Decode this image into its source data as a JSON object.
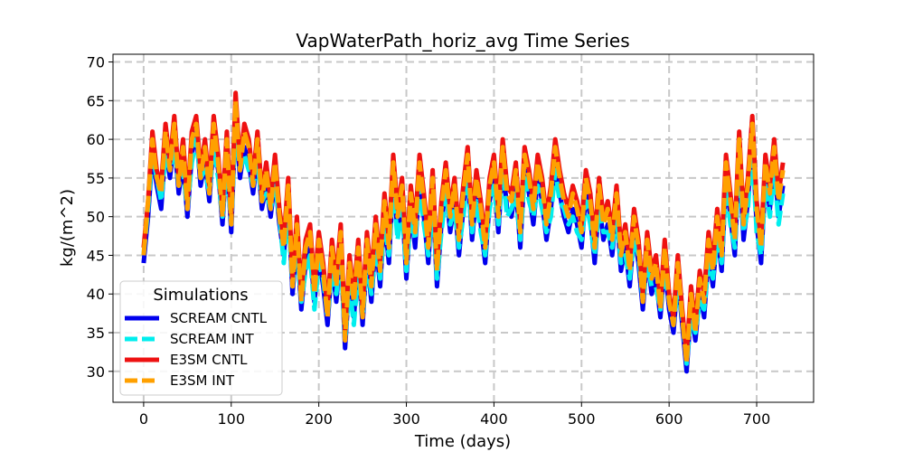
{
  "chart_data": {
    "type": "line",
    "title": "VapWaterPath_horiz_avg Time Series",
    "xlabel": "Time (days)",
    "ylabel": "kg/(m^2)",
    "xlim": [
      -35,
      765
    ],
    "ylim": [
      26,
      71
    ],
    "xticks": [
      0,
      100,
      200,
      300,
      400,
      500,
      600,
      700
    ],
    "yticks": [
      30,
      35,
      40,
      45,
      50,
      55,
      60,
      65,
      70
    ],
    "grid": true,
    "legend": {
      "title": "Simulations",
      "placement": "lower-left"
    },
    "x": [
      0,
      5,
      10,
      15,
      20,
      25,
      30,
      35,
      40,
      45,
      50,
      55,
      60,
      65,
      70,
      75,
      80,
      85,
      90,
      95,
      100,
      105,
      110,
      115,
      120,
      125,
      130,
      135,
      140,
      145,
      150,
      155,
      160,
      165,
      170,
      175,
      180,
      185,
      190,
      195,
      200,
      205,
      210,
      215,
      220,
      225,
      230,
      235,
      240,
      245,
      250,
      255,
      260,
      265,
      270,
      275,
      280,
      285,
      290,
      295,
      300,
      305,
      310,
      315,
      320,
      325,
      330,
      335,
      340,
      345,
      350,
      355,
      360,
      365,
      370,
      375,
      380,
      385,
      390,
      395,
      400,
      405,
      410,
      415,
      420,
      425,
      430,
      435,
      440,
      445,
      450,
      455,
      460,
      465,
      470,
      475,
      480,
      485,
      490,
      495,
      500,
      505,
      510,
      515,
      520,
      525,
      530,
      535,
      540,
      545,
      550,
      555,
      560,
      565,
      570,
      575,
      580,
      585,
      590,
      595,
      600,
      605,
      610,
      615,
      620,
      625,
      630,
      635,
      640,
      645,
      650,
      655,
      660,
      665,
      670,
      675,
      680,
      685,
      690,
      695,
      700,
      705,
      710,
      715,
      720,
      725,
      730
    ],
    "series": [
      {
        "name": "SCREAM CNTL",
        "color": "#0000ee",
        "dash": "solid",
        "values": [
          44,
          50,
          58,
          54,
          51,
          59,
          55,
          60,
          53,
          57,
          50,
          58,
          61,
          54,
          57,
          52,
          60,
          56,
          49,
          58,
          48,
          63,
          55,
          59,
          57,
          53,
          58,
          51,
          54,
          50,
          55,
          49,
          45,
          52,
          40,
          47,
          38,
          44,
          46,
          39,
          45,
          41,
          36,
          44,
          39,
          46,
          33,
          42,
          37,
          44,
          36,
          45,
          39,
          47,
          41,
          50,
          44,
          55,
          48,
          52,
          42,
          51,
          46,
          55,
          50,
          44,
          53,
          41,
          49,
          54,
          48,
          52,
          45,
          51,
          56,
          47,
          53,
          49,
          44,
          52,
          55,
          48,
          57,
          51,
          50,
          54,
          46,
          56,
          53,
          49,
          55,
          52,
          47,
          51,
          57,
          53,
          50,
          48,
          51,
          49,
          46,
          53,
          50,
          44,
          52,
          47,
          49,
          45,
          51,
          43,
          46,
          41,
          48,
          44,
          38,
          45,
          40,
          42,
          37,
          44,
          38,
          35,
          42,
          36,
          30,
          38,
          34,
          40,
          37,
          45,
          41,
          48,
          43,
          55,
          50,
          45,
          58,
          47,
          52,
          60,
          49,
          44,
          55,
          51,
          57,
          50,
          54
        ]
      },
      {
        "name": "SCREAM INT",
        "color": "#00eeee",
        "dash": "dash",
        "values": [
          45,
          51,
          58,
          55,
          52,
          58,
          56,
          59,
          54,
          56,
          51,
          57,
          60,
          55,
          56,
          53,
          59,
          55,
          50,
          57,
          49,
          62,
          56,
          58,
          56,
          54,
          57,
          52,
          53,
          51,
          54,
          50,
          44,
          51,
          41,
          46,
          39,
          43,
          45,
          38,
          44,
          42,
          37,
          43,
          40,
          45,
          34,
          41,
          36,
          43,
          37,
          44,
          40,
          46,
          42,
          49,
          45,
          54,
          47,
          51,
          43,
          50,
          47,
          54,
          49,
          45,
          52,
          42,
          48,
          53,
          49,
          51,
          46,
          50,
          55,
          48,
          52,
          48,
          45,
          51,
          54,
          49,
          56,
          50,
          51,
          53,
          47,
          55,
          52,
          50,
          54,
          51,
          48,
          50,
          56,
          52,
          51,
          49,
          50,
          48,
          47,
          52,
          49,
          45,
          51,
          48,
          48,
          46,
          50,
          44,
          45,
          42,
          47,
          45,
          39,
          44,
          41,
          41,
          38,
          43,
          39,
          36,
          41,
          37,
          31,
          37,
          35,
          39,
          38,
          44,
          42,
          47,
          44,
          54,
          49,
          46,
          57,
          48,
          51,
          59,
          48,
          45,
          54,
          50,
          56,
          49,
          53
        ]
      },
      {
        "name": "E3SM CNTL",
        "color": "#ee1111",
        "dash": "solid",
        "values": [
          46,
          52,
          61,
          56,
          54,
          62,
          57,
          63,
          55,
          60,
          52,
          61,
          63,
          56,
          60,
          54,
          63,
          58,
          51,
          61,
          50,
          66,
          57,
          62,
          60,
          55,
          61,
          53,
          57,
          52,
          58,
          51,
          47,
          55,
          42,
          50,
          40,
          47,
          49,
          41,
          48,
          44,
          38,
          47,
          42,
          49,
          35,
          45,
          40,
          47,
          38,
          48,
          42,
          50,
          44,
          53,
          47,
          58,
          51,
          55,
          45,
          54,
          49,
          58,
          53,
          47,
          56,
          44,
          52,
          57,
          51,
          55,
          48,
          54,
          59,
          50,
          56,
          52,
          47,
          55,
          58,
          51,
          60,
          54,
          53,
          57,
          49,
          59,
          56,
          52,
          58,
          55,
          50,
          54,
          60,
          56,
          53,
          51,
          54,
          52,
          49,
          56,
          53,
          47,
          55,
          50,
          52,
          48,
          54,
          46,
          49,
          44,
          51,
          47,
          40,
          48,
          43,
          45,
          39,
          47,
          40,
          37,
          45,
          38,
          32,
          41,
          36,
          43,
          40,
          48,
          44,
          51,
          46,
          58,
          53,
          48,
          61,
          50,
          55,
          63,
          52,
          47,
          58,
          54,
          60,
          53,
          57
        ]
      },
      {
        "name": "E3SM INT",
        "color": "#ffa000",
        "dash": "dash",
        "values": [
          45,
          52,
          60,
          55,
          53,
          61,
          56,
          62,
          54,
          59,
          51,
          60,
          62,
          55,
          59,
          53,
          62,
          57,
          50,
          60,
          49,
          65,
          56,
          61,
          59,
          54,
          60,
          52,
          56,
          51,
          57,
          50,
          46,
          54,
          41,
          49,
          39,
          46,
          48,
          40,
          47,
          43,
          37,
          46,
          41,
          48,
          34,
          44,
          39,
          46,
          37,
          47,
          41,
          49,
          43,
          52,
          46,
          57,
          50,
          54,
          44,
          53,
          48,
          57,
          52,
          46,
          55,
          43,
          51,
          56,
          50,
          54,
          47,
          53,
          58,
          49,
          55,
          51,
          46,
          54,
          57,
          50,
          59,
          53,
          52,
          56,
          48,
          58,
          55,
          51,
          57,
          54,
          49,
          53,
          59,
          55,
          52,
          50,
          53,
          51,
          48,
          55,
          52,
          46,
          54,
          49,
          51,
          47,
          53,
          45,
          48,
          43,
          50,
          46,
          39,
          47,
          42,
          44,
          38,
          46,
          39,
          36,
          44,
          37,
          31,
          40,
          35,
          42,
          39,
          47,
          43,
          50,
          45,
          57,
          52,
          47,
          60,
          49,
          54,
          62,
          51,
          46,
          57,
          53,
          59,
          52,
          56
        ]
      }
    ]
  }
}
